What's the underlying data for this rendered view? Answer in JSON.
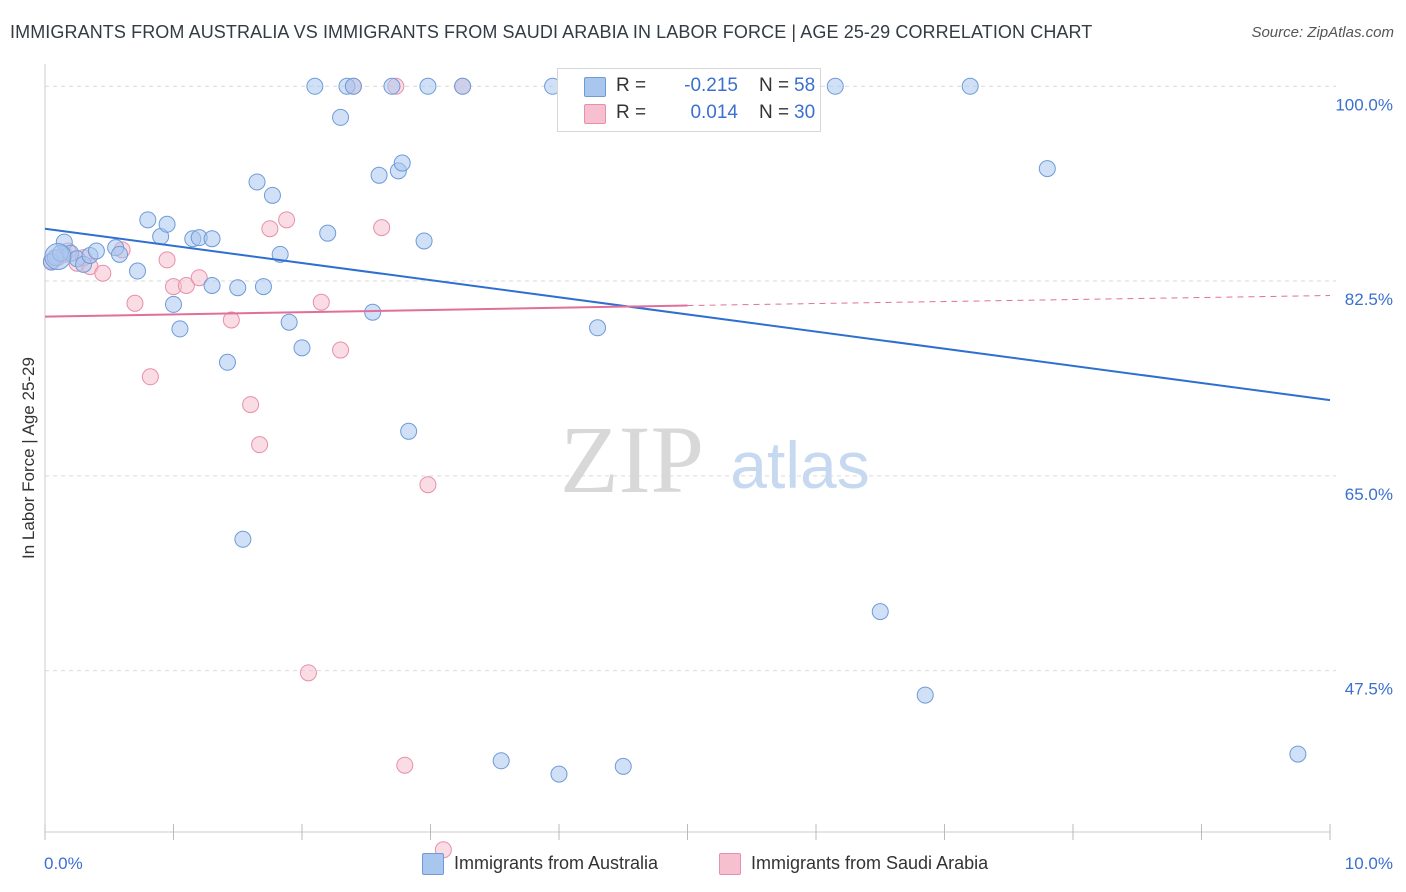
{
  "title": "IMMIGRANTS FROM AUSTRALIA VS IMMIGRANTS FROM SAUDI ARABIA IN LABOR FORCE | AGE 25-29 CORRELATION CHART",
  "source": "Source: ZipAtlas.com",
  "legend": {
    "rows": [
      {
        "r_label": "R =",
        "r_value": "-0.215",
        "n_label": "N =",
        "n_value": "58"
      },
      {
        "r_label": "R =",
        "r_value": "0.014",
        "n_label": "N =",
        "n_value": "30"
      }
    ]
  },
  "bottom_legend": [
    "Immigrants from Australia",
    "Immigrants from Saudi Arabia"
  ],
  "colors": {
    "australia_fill": "#a9c6ee",
    "australia_stroke": "#6e9bd8",
    "australia_line": "#2f6fd0",
    "saudi_fill": "#f6c0d0",
    "saudi_stroke": "#e88fab",
    "saudi_line": "#e0709a",
    "grid": "#d9d9d9",
    "axis_text": "#3b6fd0"
  },
  "watermark": {
    "zip": "ZIP",
    "atlas": "atlas"
  },
  "chart_data": {
    "type": "scatter",
    "title": "IMMIGRANTS FROM AUSTRALIA VS IMMIGRANTS FROM SAUDI ARABIA IN LABOR FORCE | AGE 25-29 CORRELATION CHART",
    "xlabel": "",
    "ylabel": "In Labor Force | Age 25-29",
    "xlim": [
      0,
      10
    ],
    "ylim": [
      33,
      102
    ],
    "x_tick_labels": [
      "0.0%",
      "10.0%"
    ],
    "y_tick_labels": [
      "100.0%",
      "82.5%",
      "65.0%",
      "47.5%"
    ],
    "y_ticks": [
      100,
      82.5,
      65,
      47.5
    ],
    "grid": true,
    "legend_position": "top-center",
    "series": [
      {
        "name": "Immigrants from Australia",
        "r": -0.215,
        "n": 58,
        "trend": {
          "x": [
            0,
            10
          ],
          "y": [
            87.2,
            71.8
          ]
        },
        "points": [
          [
            0.05,
            84.2
          ],
          [
            0.08,
            84.6
          ],
          [
            0.15,
            86.0
          ],
          [
            0.2,
            85.0
          ],
          [
            0.25,
            84.5
          ],
          [
            0.3,
            84.0
          ],
          [
            0.35,
            84.8
          ],
          [
            0.4,
            85.2
          ],
          [
            0.55,
            85.5
          ],
          [
            0.58,
            84.9
          ],
          [
            0.72,
            83.4
          ],
          [
            0.8,
            88.0
          ],
          [
            0.9,
            86.5
          ],
          [
            0.95,
            87.6
          ],
          [
            1.0,
            80.4
          ],
          [
            1.05,
            78.2
          ],
          [
            1.15,
            86.3
          ],
          [
            1.2,
            86.4
          ],
          [
            1.3,
            86.3
          ],
          [
            1.3,
            82.1
          ],
          [
            1.42,
            75.2
          ],
          [
            1.5,
            81.9
          ],
          [
            1.54,
            59.3
          ],
          [
            1.65,
            91.4
          ],
          [
            1.7,
            82.0
          ],
          [
            1.77,
            90.2
          ],
          [
            1.83,
            84.9
          ],
          [
            1.9,
            78.8
          ],
          [
            2.0,
            76.5
          ],
          [
            2.1,
            100.0
          ],
          [
            2.2,
            86.8
          ],
          [
            2.3,
            97.2
          ],
          [
            2.35,
            100.0
          ],
          [
            2.4,
            100.0
          ],
          [
            2.55,
            79.7
          ],
          [
            2.6,
            92.0
          ],
          [
            2.75,
            92.4
          ],
          [
            2.78,
            93.1
          ],
          [
            2.83,
            69.0
          ],
          [
            2.95,
            86.1
          ],
          [
            2.98,
            100.0
          ],
          [
            3.25,
            100.0
          ],
          [
            3.55,
            39.4
          ],
          [
            4.0,
            38.2
          ],
          [
            4.3,
            78.3
          ],
          [
            4.4,
            100.0
          ],
          [
            4.5,
            38.9
          ],
          [
            4.75,
            100.0
          ],
          [
            5.2,
            100.0
          ],
          [
            6.15,
            100.0
          ],
          [
            6.5,
            52.8
          ],
          [
            6.85,
            45.3
          ],
          [
            7.2,
            100.0
          ],
          [
            7.8,
            92.6
          ],
          [
            9.75,
            40.0
          ],
          [
            0.12,
            85.0
          ],
          [
            2.7,
            100.0
          ],
          [
            3.95,
            100.0
          ]
        ]
      },
      {
        "name": "Immigrants from Saudi Arabia",
        "r": 0.014,
        "n": 30,
        "trend": {
          "x": [
            0,
            5.0
          ],
          "y": [
            79.3,
            80.3
          ]
        },
        "trend_dashed": {
          "x": [
            5.0,
            10
          ],
          "y": [
            80.3,
            81.2
          ]
        },
        "points": [
          [
            0.05,
            84.3
          ],
          [
            0.1,
            84.6
          ],
          [
            0.18,
            85.2
          ],
          [
            0.25,
            84.1
          ],
          [
            0.35,
            83.8
          ],
          [
            0.45,
            83.2
          ],
          [
            0.6,
            85.3
          ],
          [
            0.7,
            80.5
          ],
          [
            0.82,
            73.9
          ],
          [
            0.95,
            84.4
          ],
          [
            1.0,
            82.0
          ],
          [
            1.1,
            82.1
          ],
          [
            1.2,
            82.8
          ],
          [
            1.45,
            79.0
          ],
          [
            1.6,
            71.4
          ],
          [
            1.67,
            67.8
          ],
          [
            1.75,
            87.2
          ],
          [
            1.88,
            88.0
          ],
          [
            2.05,
            47.3
          ],
          [
            2.15,
            80.6
          ],
          [
            2.3,
            76.3
          ],
          [
            2.4,
            100.0
          ],
          [
            2.62,
            87.3
          ],
          [
            2.73,
            100.0
          ],
          [
            2.8,
            39.0
          ],
          [
            2.98,
            64.2
          ],
          [
            3.1,
            31.4
          ],
          [
            3.25,
            100.0
          ],
          [
            0.15,
            84.9
          ],
          [
            0.3,
            84.6
          ]
        ]
      }
    ]
  }
}
